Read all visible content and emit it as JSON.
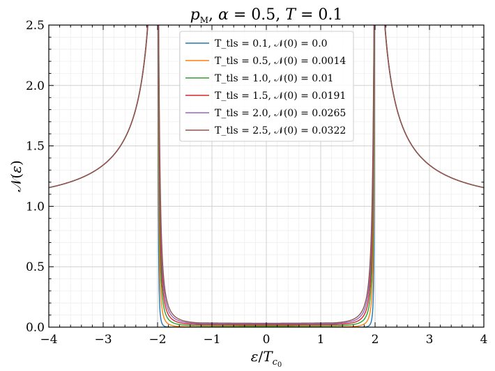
{
  "chart_data": {
    "type": "line",
    "title": "p_M, α = 0.5, T = 0.1",
    "xlabel": "ε/T_c0",
    "ylabel": "𝒩(ε)",
    "xlim": [
      -4,
      4
    ],
    "ylim": [
      0,
      2.5
    ],
    "xticks": [
      -4,
      -3,
      -2,
      -1,
      0,
      1,
      2,
      3,
      4
    ],
    "yticks": [
      0.0,
      0.5,
      1.0,
      1.5,
      2.0,
      2.5
    ],
    "xtick_labels": [
      "−4",
      "−3",
      "−2",
      "−1",
      "0",
      "1",
      "2",
      "3",
      "4"
    ],
    "ytick_labels": [
      "0.0",
      "0.5",
      "1.0",
      "1.5",
      "2.0",
      "2.5"
    ],
    "grid": true,
    "legend_position": "top-center",
    "gap_edge": 2.0,
    "series": [
      {
        "name": "T_tls = 0.1, 𝒩(0) = 0.0",
        "t_tls": 0.1,
        "n0": 0.0,
        "color": "#1f77b4"
      },
      {
        "name": "T_tls = 0.5, 𝒩(0) = 0.0014",
        "t_tls": 0.5,
        "n0": 0.0014,
        "color": "#ff7f0e"
      },
      {
        "name": "T_tls = 1.0, 𝒩(0) = 0.01",
        "t_tls": 1.0,
        "n0": 0.01,
        "color": "#2ca02c"
      },
      {
        "name": "T_tls = 1.5, 𝒩(0) = 0.0191",
        "t_tls": 1.5,
        "n0": 0.0191,
        "color": "#d62728"
      },
      {
        "name": "T_tls = 2.0, 𝒩(0) = 0.0265",
        "t_tls": 2.0,
        "n0": 0.0265,
        "color": "#9467bd"
      },
      {
        "name": "T_tls = 2.5, 𝒩(0) = 0.0322",
        "t_tls": 2.5,
        "n0": 0.0322,
        "color": "#8c564b"
      }
    ]
  }
}
